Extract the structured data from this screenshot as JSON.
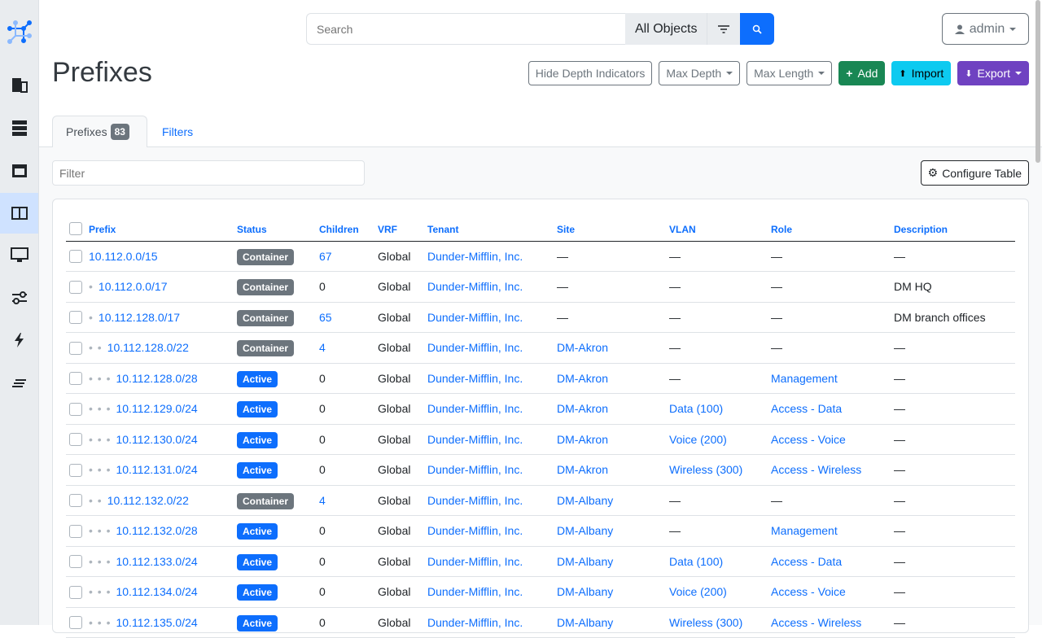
{
  "sidebar": {
    "items": [
      "logo",
      "organization",
      "devices",
      "connections",
      "ipam",
      "virtualization",
      "circuits",
      "power",
      "other"
    ],
    "active": "ipam"
  },
  "search": {
    "placeholder": "Search",
    "scope": "All Objects"
  },
  "user": {
    "name": "admin"
  },
  "page": {
    "title": "Prefixes"
  },
  "actions": {
    "hide_depth": "Hide Depth Indicators",
    "max_depth": "Max Depth",
    "max_length": "Max Length",
    "add": "Add",
    "import": "Import",
    "export": "Export"
  },
  "colors": {
    "primary": "#0d6efd",
    "add": "#198754",
    "import": "#0dcaf0",
    "export": "#6f42c1",
    "container": "#6c757d",
    "active": "#0d6efd"
  },
  "tabs": {
    "prefixes": "Prefixes",
    "count": "83",
    "filters": "Filters"
  },
  "filter": {
    "placeholder": "Filter"
  },
  "configure_table": "Configure Table",
  "table": {
    "columns": [
      "Prefix",
      "Status",
      "Children",
      "VRF",
      "Tenant",
      "Site",
      "VLAN",
      "Role",
      "Description"
    ],
    "rows": [
      {
        "depth": 0,
        "prefix": "10.112.0.0/15",
        "status": "Container",
        "children": "67",
        "vrf": "Global",
        "tenant": "Dunder-Mifflin, Inc.",
        "site": "—",
        "vlan": "—",
        "role": "—",
        "description": "—"
      },
      {
        "depth": 1,
        "prefix": "10.112.0.0/17",
        "status": "Container",
        "children": "0",
        "vrf": "Global",
        "tenant": "Dunder-Mifflin, Inc.",
        "site": "—",
        "vlan": "—",
        "role": "—",
        "description": "DM HQ"
      },
      {
        "depth": 1,
        "prefix": "10.112.128.0/17",
        "status": "Container",
        "children": "65",
        "vrf": "Global",
        "tenant": "Dunder-Mifflin, Inc.",
        "site": "—",
        "vlan": "—",
        "role": "—",
        "description": "DM branch offices"
      },
      {
        "depth": 2,
        "prefix": "10.112.128.0/22",
        "status": "Container",
        "children": "4",
        "vrf": "Global",
        "tenant": "Dunder-Mifflin, Inc.",
        "site": "DM-Akron",
        "vlan": "—",
        "role": "—",
        "description": "—"
      },
      {
        "depth": 3,
        "prefix": "10.112.128.0/28",
        "status": "Active",
        "children": "0",
        "vrf": "Global",
        "tenant": "Dunder-Mifflin, Inc.",
        "site": "DM-Akron",
        "vlan": "—",
        "role": "Management",
        "description": "—"
      },
      {
        "depth": 3,
        "prefix": "10.112.129.0/24",
        "status": "Active",
        "children": "0",
        "vrf": "Global",
        "tenant": "Dunder-Mifflin, Inc.",
        "site": "DM-Akron",
        "vlan": "Data (100)",
        "role": "Access - Data",
        "description": "—"
      },
      {
        "depth": 3,
        "prefix": "10.112.130.0/24",
        "status": "Active",
        "children": "0",
        "vrf": "Global",
        "tenant": "Dunder-Mifflin, Inc.",
        "site": "DM-Akron",
        "vlan": "Voice (200)",
        "role": "Access - Voice",
        "description": "—"
      },
      {
        "depth": 3,
        "prefix": "10.112.131.0/24",
        "status": "Active",
        "children": "0",
        "vrf": "Global",
        "tenant": "Dunder-Mifflin, Inc.",
        "site": "DM-Akron",
        "vlan": "Wireless (300)",
        "role": "Access - Wireless",
        "description": "—"
      },
      {
        "depth": 2,
        "prefix": "10.112.132.0/22",
        "status": "Container",
        "children": "4",
        "vrf": "Global",
        "tenant": "Dunder-Mifflin, Inc.",
        "site": "DM-Albany",
        "vlan": "—",
        "role": "—",
        "description": "—"
      },
      {
        "depth": 3,
        "prefix": "10.112.132.0/28",
        "status": "Active",
        "children": "0",
        "vrf": "Global",
        "tenant": "Dunder-Mifflin, Inc.",
        "site": "DM-Albany",
        "vlan": "—",
        "role": "Management",
        "description": "—"
      },
      {
        "depth": 3,
        "prefix": "10.112.133.0/24",
        "status": "Active",
        "children": "0",
        "vrf": "Global",
        "tenant": "Dunder-Mifflin, Inc.",
        "site": "DM-Albany",
        "vlan": "Data (100)",
        "role": "Access - Data",
        "description": "—"
      },
      {
        "depth": 3,
        "prefix": "10.112.134.0/24",
        "status": "Active",
        "children": "0",
        "vrf": "Global",
        "tenant": "Dunder-Mifflin, Inc.",
        "site": "DM-Albany",
        "vlan": "Voice (200)",
        "role": "Access - Voice",
        "description": "—"
      },
      {
        "depth": 3,
        "prefix": "10.112.135.0/24",
        "status": "Active",
        "children": "0",
        "vrf": "Global",
        "tenant": "Dunder-Mifflin, Inc.",
        "site": "DM-Albany",
        "vlan": "Wireless (300)",
        "role": "Access - Wireless",
        "description": "—"
      }
    ]
  }
}
